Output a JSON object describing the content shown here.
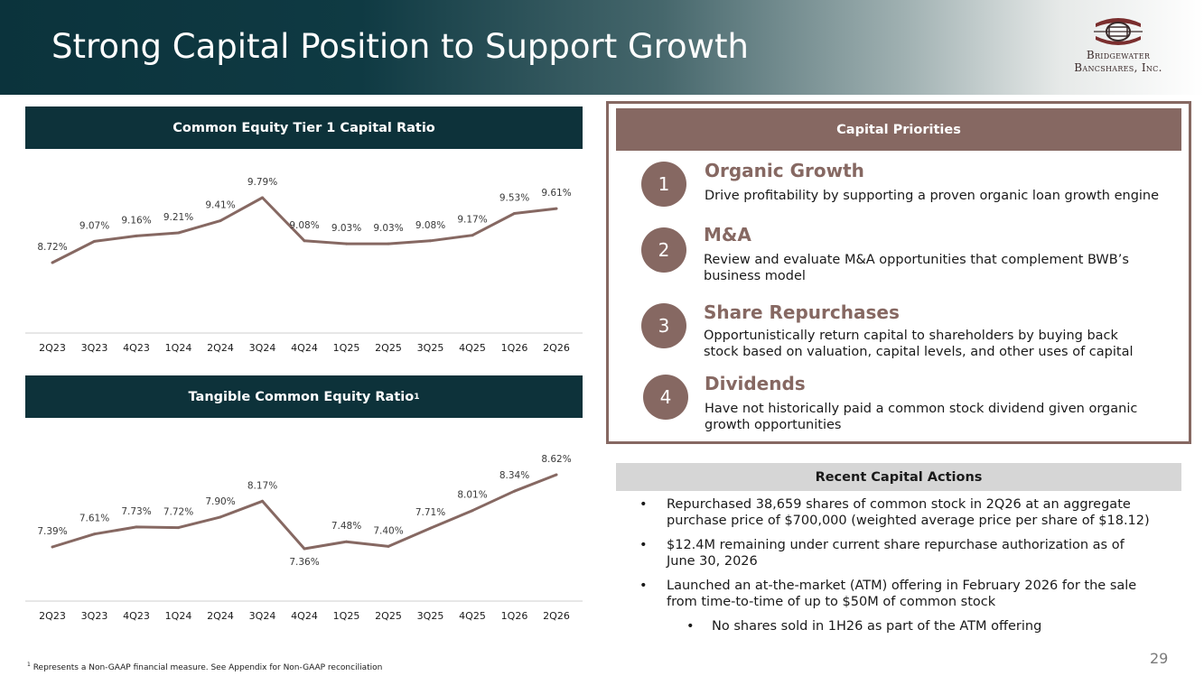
{
  "header": {
    "title": "Strong Capital Position to Support Growth",
    "logo_line1": "Bridgewater",
    "logo_line2": "Bancshares, Inc."
  },
  "colors": {
    "dark_teal": "#0d323a",
    "brown": "#866862",
    "gray_bar": "#d6d6d6"
  },
  "cet1": {
    "title": "Common Equity Tier 1 Capital Ratio"
  },
  "tce": {
    "title": "Tangible Common Equity Ratio",
    "title_sup": "1"
  },
  "chart_data": [
    {
      "type": "line",
      "title": "Common Equity Tier 1 Capital Ratio",
      "categories": [
        "2Q23",
        "3Q23",
        "4Q23",
        "1Q24",
        "2Q24",
        "3Q24",
        "4Q24",
        "1Q25",
        "2Q25",
        "3Q25",
        "4Q25",
        "1Q26",
        "2Q26"
      ],
      "values": [
        8.72,
        9.07,
        9.16,
        9.21,
        9.41,
        9.79,
        9.08,
        9.03,
        9.03,
        9.08,
        9.17,
        9.53,
        9.61
      ],
      "labels": [
        "8.72%",
        "9.07%",
        "9.16%",
        "9.21%",
        "9.41%",
        "9.79%",
        "9.08%",
        "9.03%",
        "9.03%",
        "9.08%",
        "9.17%",
        "9.53%",
        "9.61%"
      ],
      "grid": false,
      "series_color": "#866862"
    },
    {
      "type": "line",
      "title": "Tangible Common Equity Ratio",
      "categories": [
        "2Q23",
        "3Q23",
        "4Q23",
        "1Q24",
        "2Q24",
        "3Q24",
        "4Q24",
        "1Q25",
        "2Q25",
        "3Q25",
        "4Q25",
        "1Q26",
        "2Q26"
      ],
      "values": [
        7.39,
        7.61,
        7.73,
        7.72,
        7.9,
        8.17,
        7.36,
        7.48,
        7.4,
        7.71,
        8.01,
        8.34,
        8.62
      ],
      "labels": [
        "7.39%",
        "7.61%",
        "7.73%",
        "7.72%",
        "7.90%",
        "8.17%",
        "7.36%",
        "7.48%",
        "7.40%",
        "7.71%",
        "8.01%",
        "8.34%",
        "8.62%"
      ],
      "grid": false,
      "series_color": "#866862"
    }
  ],
  "priorities": {
    "title": "Capital Priorities",
    "items": [
      {
        "num": "1",
        "title": "Organic Growth",
        "desc": "Drive profitability by supporting a proven organic loan growth engine"
      },
      {
        "num": "2",
        "title": "M&A",
        "desc": "Review and evaluate M&A opportunities that complement BWB’s business model"
      },
      {
        "num": "3",
        "title": "Share Repurchases",
        "desc": "Opportunistically return capital to shareholders by buying back stock based on valuation, capital levels, and other uses of capital"
      },
      {
        "num": "4",
        "title": "Dividends",
        "desc": "Have not historically paid a common stock dividend given organic growth opportunities"
      }
    ]
  },
  "actions": {
    "title": "Recent Capital Actions",
    "bullet_char": "•",
    "bullets": [
      "Repurchased 38,659 shares of common stock in 2Q26 at an aggregate purchase price of $700,000 (weighted average price per share of $18.12)",
      "$12.4M remaining under current share repurchase authorization as of June 30, 2026",
      "Launched an at-the-market (ATM) offering in February 2026 for the sale from time-to-time of up to $50M of common stock",
      "No shares sold in 1H26 as part of the ATM offering"
    ]
  },
  "footnote": {
    "sup": "1",
    "text": "Represents a Non-GAAP financial measure. See Appendix for Non-GAAP reconciliation"
  },
  "page_number": "29"
}
